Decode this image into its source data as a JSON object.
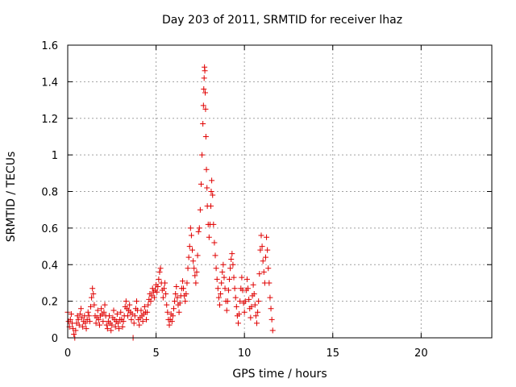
{
  "chart_data": {
    "type": "scatter",
    "title": "Day 203 of 2011, SRMTID for receiver lhaz",
    "xlabel": "GPS time / hours",
    "ylabel": "SRMTID / TECUs",
    "xlim": [
      0,
      24
    ],
    "ylim": [
      0,
      1.6
    ],
    "xticks": [
      0,
      5,
      10,
      15,
      20
    ],
    "yticks": [
      0,
      0.2,
      0.4,
      0.6,
      0.8,
      1,
      1.2,
      1.4,
      1.6
    ],
    "xtick_labels": [
      "0",
      "5",
      "10",
      "15",
      "20"
    ],
    "ytick_labels": [
      "0",
      "0.2",
      "0.4",
      "0.6",
      "0.8",
      "1",
      "1.2",
      "1.4",
      "1.6"
    ],
    "grid": true,
    "marker": "+",
    "color": "#e00000",
    "series": [
      {
        "name": "lhaz",
        "points": [
          [
            0.0,
            0.14
          ],
          [
            0.05,
            0.09
          ],
          [
            0.1,
            0.06
          ],
          [
            0.15,
            0.1
          ],
          [
            0.2,
            0.13
          ],
          [
            0.25,
            0.08
          ],
          [
            0.3,
            0.05
          ],
          [
            0.35,
            0.02
          ],
          [
            0.4,
            0.0
          ],
          [
            0.45,
            0.04
          ],
          [
            0.5,
            0.08
          ],
          [
            0.55,
            0.12
          ],
          [
            0.6,
            0.1
          ],
          [
            0.65,
            0.07
          ],
          [
            0.7,
            0.13
          ],
          [
            0.75,
            0.16
          ],
          [
            0.8,
            0.11
          ],
          [
            0.85,
            0.06
          ],
          [
            0.9,
            0.09
          ],
          [
            0.95,
            0.12
          ],
          [
            1.0,
            0.08
          ],
          [
            1.05,
            0.05
          ],
          [
            1.1,
            0.1
          ],
          [
            1.15,
            0.14
          ],
          [
            1.2,
            0.12
          ],
          [
            1.25,
            0.09
          ],
          [
            1.3,
            0.17
          ],
          [
            1.35,
            0.22
          ],
          [
            1.4,
            0.27
          ],
          [
            1.45,
            0.24
          ],
          [
            1.5,
            0.18
          ],
          [
            1.55,
            0.12
          ],
          [
            1.6,
            0.08
          ],
          [
            1.65,
            0.11
          ],
          [
            1.7,
            0.15
          ],
          [
            1.75,
            0.1
          ],
          [
            1.8,
            0.07
          ],
          [
            1.85,
            0.12
          ],
          [
            1.9,
            0.16
          ],
          [
            1.95,
            0.13
          ],
          [
            2.0,
            0.09
          ],
          [
            2.05,
            0.14
          ],
          [
            2.1,
            0.18
          ],
          [
            2.15,
            0.12
          ],
          [
            2.2,
            0.07
          ],
          [
            2.25,
            0.05
          ],
          [
            2.3,
            0.09
          ],
          [
            2.35,
            0.12
          ],
          [
            2.4,
            0.08
          ],
          [
            2.45,
            0.04
          ],
          [
            2.5,
            0.07
          ],
          [
            2.55,
            0.11
          ],
          [
            2.6,
            0.15
          ],
          [
            2.65,
            0.1
          ],
          [
            2.7,
            0.06
          ],
          [
            2.75,
            0.09
          ],
          [
            2.8,
            0.13
          ],
          [
            2.85,
            0.08
          ],
          [
            2.9,
            0.05
          ],
          [
            2.95,
            0.1
          ],
          [
            3.0,
            0.14
          ],
          [
            3.05,
            0.1
          ],
          [
            3.1,
            0.06
          ],
          [
            3.15,
            0.09
          ],
          [
            3.2,
            0.12
          ],
          [
            3.25,
            0.17
          ],
          [
            3.3,
            0.2
          ],
          [
            3.35,
            0.16
          ],
          [
            3.4,
            0.12
          ],
          [
            3.45,
            0.15
          ],
          [
            3.5,
            0.18
          ],
          [
            3.55,
            0.14
          ],
          [
            3.6,
            0.1
          ],
          [
            3.65,
            0.13
          ],
          [
            3.7,
            0.0
          ],
          [
            3.75,
            0.08
          ],
          [
            3.8,
            0.12
          ],
          [
            3.85,
            0.16
          ],
          [
            3.9,
            0.2
          ],
          [
            3.95,
            0.15
          ],
          [
            4.0,
            0.1
          ],
          [
            4.05,
            0.07
          ],
          [
            4.1,
            0.11
          ],
          [
            4.15,
            0.15
          ],
          [
            4.2,
            0.12
          ],
          [
            4.25,
            0.09
          ],
          [
            4.3,
            0.13
          ],
          [
            4.35,
            0.17
          ],
          [
            4.4,
            0.14
          ],
          [
            4.45,
            0.1
          ],
          [
            4.5,
            0.14
          ],
          [
            4.55,
            0.18
          ],
          [
            4.6,
            0.21
          ],
          [
            4.65,
            0.24
          ],
          [
            4.7,
            0.2
          ],
          [
            4.75,
            0.23
          ],
          [
            4.8,
            0.27
          ],
          [
            4.85,
            0.25
          ],
          [
            4.9,
            0.22
          ],
          [
            4.95,
            0.26
          ],
          [
            5.0,
            0.29
          ],
          [
            5.05,
            0.25
          ],
          [
            5.1,
            0.28
          ],
          [
            5.15,
            0.32
          ],
          [
            5.2,
            0.36
          ],
          [
            5.25,
            0.38
          ],
          [
            5.3,
            0.3
          ],
          [
            5.35,
            0.26
          ],
          [
            5.4,
            0.22
          ],
          [
            5.45,
            0.27
          ],
          [
            5.5,
            0.3
          ],
          [
            5.55,
            0.24
          ],
          [
            5.6,
            0.18
          ],
          [
            5.65,
            0.14
          ],
          [
            5.7,
            0.1
          ],
          [
            5.75,
            0.07
          ],
          [
            5.8,
            0.1
          ],
          [
            5.85,
            0.13
          ],
          [
            5.9,
            0.09
          ],
          [
            5.95,
            0.12
          ],
          [
            6.0,
            0.16
          ],
          [
            6.05,
            0.2
          ],
          [
            6.1,
            0.24
          ],
          [
            6.15,
            0.28
          ],
          [
            6.2,
            0.22
          ],
          [
            6.25,
            0.18
          ],
          [
            6.3,
            0.14
          ],
          [
            6.35,
            0.19
          ],
          [
            6.4,
            0.23
          ],
          [
            6.45,
            0.27
          ],
          [
            6.5,
            0.31
          ],
          [
            6.55,
            0.27
          ],
          [
            6.6,
            0.23
          ],
          [
            6.65,
            0.2
          ],
          [
            6.7,
            0.24
          ],
          [
            6.75,
            0.3
          ],
          [
            6.8,
            0.38
          ],
          [
            6.85,
            0.44
          ],
          [
            6.9,
            0.5
          ],
          [
            6.95,
            0.6
          ],
          [
            7.0,
            0.56
          ],
          [
            7.05,
            0.48
          ],
          [
            7.1,
            0.42
          ],
          [
            7.15,
            0.38
          ],
          [
            7.2,
            0.34
          ],
          [
            7.25,
            0.3
          ],
          [
            7.3,
            0.36
          ],
          [
            7.35,
            0.45
          ],
          [
            7.4,
            0.58
          ],
          [
            7.45,
            0.6
          ],
          [
            7.5,
            0.7
          ],
          [
            7.55,
            0.84
          ],
          [
            7.6,
            1.0
          ],
          [
            7.65,
            1.17
          ],
          [
            7.68,
            1.27
          ],
          [
            7.7,
            1.36
          ],
          [
            7.72,
            1.42
          ],
          [
            7.74,
            1.48
          ],
          [
            7.76,
            1.46
          ],
          [
            7.78,
            1.34
          ],
          [
            7.8,
            1.25
          ],
          [
            7.82,
            1.1
          ],
          [
            7.85,
            0.92
          ],
          [
            7.88,
            0.82
          ],
          [
            7.9,
            0.72
          ],
          [
            7.95,
            0.62
          ],
          [
            8.0,
            0.55
          ],
          [
            8.05,
            0.62
          ],
          [
            8.1,
            0.72
          ],
          [
            8.12,
            0.8
          ],
          [
            8.15,
            0.86
          ],
          [
            8.2,
            0.78
          ],
          [
            8.25,
            0.62
          ],
          [
            8.3,
            0.52
          ],
          [
            8.35,
            0.45
          ],
          [
            8.4,
            0.38
          ],
          [
            8.45,
            0.32
          ],
          [
            8.5,
            0.27
          ],
          [
            8.55,
            0.22
          ],
          [
            8.6,
            0.18
          ],
          [
            8.65,
            0.24
          ],
          [
            8.7,
            0.3
          ],
          [
            8.75,
            0.36
          ],
          [
            8.8,
            0.4
          ],
          [
            8.85,
            0.33
          ],
          [
            8.9,
            0.27
          ],
          [
            8.95,
            0.2
          ],
          [
            9.0,
            0.15
          ],
          [
            9.05,
            0.2
          ],
          [
            9.1,
            0.26
          ],
          [
            9.15,
            0.32
          ],
          [
            9.2,
            0.38
          ],
          [
            9.25,
            0.43
          ],
          [
            9.3,
            0.46
          ],
          [
            9.35,
            0.4
          ],
          [
            9.4,
            0.33
          ],
          [
            9.45,
            0.27
          ],
          [
            9.5,
            0.22
          ],
          [
            9.55,
            0.17
          ],
          [
            9.6,
            0.12
          ],
          [
            9.65,
            0.08
          ],
          [
            9.7,
            0.13
          ],
          [
            9.75,
            0.2
          ],
          [
            9.8,
            0.27
          ],
          [
            9.85,
            0.33
          ],
          [
            9.9,
            0.26
          ],
          [
            9.95,
            0.19
          ],
          [
            10.0,
            0.14
          ],
          [
            10.05,
            0.2
          ],
          [
            10.1,
            0.26
          ],
          [
            10.15,
            0.32
          ],
          [
            10.2,
            0.27
          ],
          [
            10.25,
            0.21
          ],
          [
            10.3,
            0.16
          ],
          [
            10.35,
            0.11
          ],
          [
            10.4,
            0.17
          ],
          [
            10.45,
            0.23
          ],
          [
            10.5,
            0.29
          ],
          [
            10.55,
            0.24
          ],
          [
            10.6,
            0.18
          ],
          [
            10.65,
            0.12
          ],
          [
            10.7,
            0.08
          ],
          [
            10.75,
            0.14
          ],
          [
            10.8,
            0.2
          ],
          [
            10.85,
            0.35
          ],
          [
            10.9,
            0.48
          ],
          [
            10.95,
            0.56
          ],
          [
            11.0,
            0.5
          ],
          [
            11.05,
            0.42
          ],
          [
            11.1,
            0.36
          ],
          [
            11.15,
            0.3
          ],
          [
            11.2,
            0.44
          ],
          [
            11.25,
            0.55
          ],
          [
            11.3,
            0.48
          ],
          [
            11.35,
            0.38
          ],
          [
            11.4,
            0.3
          ],
          [
            11.45,
            0.22
          ],
          [
            11.5,
            0.16
          ],
          [
            11.55,
            0.1
          ],
          [
            11.6,
            0.04
          ]
        ]
      }
    ]
  }
}
